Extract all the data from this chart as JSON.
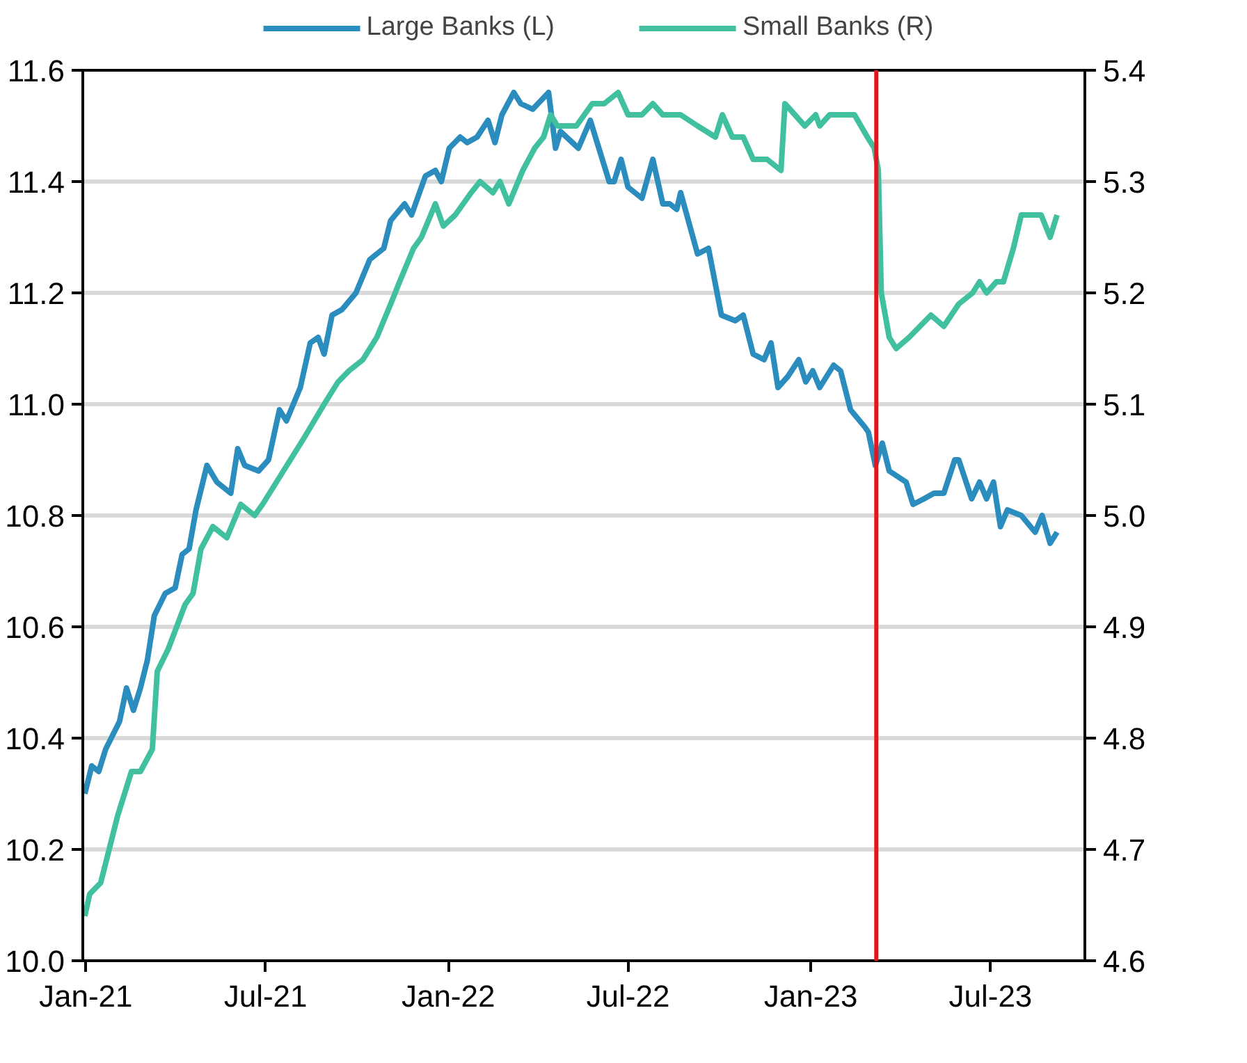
{
  "chart_data": {
    "type": "line",
    "legend": "top",
    "grid": "y",
    "line_style": "solid",
    "marker": "none",
    "xlim": [
      "2020-12-29",
      "2023-10-04"
    ],
    "xticks": [
      {
        "value": "2021-01-01",
        "label": "Jan-21"
      },
      {
        "value": "2021-07-01",
        "label": "Jul-21"
      },
      {
        "value": "2022-01-01",
        "label": "Jan-22"
      },
      {
        "value": "2022-07-01",
        "label": "Jul-22"
      },
      {
        "value": "2023-01-01",
        "label": "Jan-23"
      },
      {
        "value": "2023-07-01",
        "label": "Jul-23"
      }
    ],
    "ylim": [
      10.0,
      11.6
    ],
    "yticks": [
      {
        "value": 10.0,
        "label": "10.0"
      },
      {
        "value": 10.2,
        "label": "10.2"
      },
      {
        "value": 10.4,
        "label": "10.4"
      },
      {
        "value": 10.6,
        "label": "10.6"
      },
      {
        "value": 10.8,
        "label": "10.8"
      },
      {
        "value": 11.0,
        "label": "11.0"
      },
      {
        "value": 11.2,
        "label": "11.2"
      },
      {
        "value": 11.4,
        "label": "11.4"
      },
      {
        "value": 11.6,
        "label": "11.6"
      }
    ],
    "y2lim": [
      4.6,
      5.4
    ],
    "y2ticks": [
      4.6,
      4.7,
      4.8,
      4.9,
      {
        "value": 5.0,
        "label": "5.0"
      },
      5.1,
      5.2,
      5.3,
      5.4
    ],
    "ref_lines": [
      {
        "axis": "x",
        "value": "2023-03-08",
        "color": "#e8141c",
        "line_style": "solid"
      }
    ],
    "series": [
      {
        "name": "Large Banks (L)",
        "color": "#2b8cbe",
        "axis": "y",
        "x": [
          "2020-12-31",
          "2021-01-07",
          "2021-01-14",
          "2021-01-21",
          "2021-02-04",
          "2021-02-11",
          "2021-02-18",
          "2021-02-25",
          "2021-03-04",
          "2021-03-11",
          "2021-03-22",
          "2021-04-01",
          "2021-04-08",
          "2021-04-15",
          "2021-04-22",
          "2021-05-03",
          "2021-05-13",
          "2021-05-27",
          "2021-06-03",
          "2021-06-10",
          "2021-06-24",
          "2021-07-04",
          "2021-07-15",
          "2021-07-22",
          "2021-08-05",
          "2021-08-15",
          "2021-08-23",
          "2021-08-29",
          "2021-09-06",
          "2021-09-16",
          "2021-09-30",
          "2021-10-14",
          "2021-10-28",
          "2021-11-04",
          "2021-11-18",
          "2021-11-25",
          "2021-12-09",
          "2021-12-19",
          "2021-12-25",
          "2022-01-02",
          "2022-01-13",
          "2022-01-20",
          "2022-01-30",
          "2022-02-10",
          "2022-02-17",
          "2022-02-24",
          "2022-03-08",
          "2022-03-15",
          "2022-03-27",
          "2022-04-12",
          "2022-04-19",
          "2022-04-24",
          "2022-05-12",
          "2022-05-24",
          "2022-06-12",
          "2022-06-17",
          "2022-06-24",
          "2022-07-01",
          "2022-07-15",
          "2022-07-26",
          "2022-08-05",
          "2022-08-12",
          "2022-08-19",
          "2022-08-23",
          "2022-09-09",
          "2022-09-20",
          "2022-10-03",
          "2022-10-17",
          "2022-10-25",
          "2022-11-04",
          "2022-11-15",
          "2022-11-22",
          "2022-11-29",
          "2022-12-09",
          "2022-12-20",
          "2022-12-27",
          "2023-01-03",
          "2023-01-10",
          "2023-01-24",
          "2023-01-31",
          "2023-02-10",
          "2023-02-24",
          "2023-02-28",
          "2023-03-07",
          "2023-03-14",
          "2023-03-21",
          "2023-04-07",
          "2023-04-14",
          "2023-04-25",
          "2023-05-05",
          "2023-05-15",
          "2023-05-26",
          "2023-05-30",
          "2023-06-12",
          "2023-06-20",
          "2023-06-27",
          "2023-07-04",
          "2023-07-11",
          "2023-07-18",
          "2023-08-01",
          "2023-08-15",
          "2023-08-22",
          "2023-08-30",
          "2023-09-06"
        ],
        "values": [
          10.3,
          10.35,
          10.34,
          10.38,
          10.43,
          10.49,
          10.45,
          10.49,
          10.54,
          10.62,
          10.66,
          10.67,
          10.73,
          10.74,
          10.81,
          10.89,
          10.86,
          10.84,
          10.92,
          10.89,
          10.88,
          10.9,
          10.99,
          10.97,
          11.03,
          11.11,
          11.12,
          11.09,
          11.16,
          11.17,
          11.2,
          11.26,
          11.28,
          11.33,
          11.36,
          11.34,
          11.41,
          11.42,
          11.4,
          11.46,
          11.48,
          11.47,
          11.48,
          11.51,
          11.47,
          11.52,
          11.56,
          11.54,
          11.53,
          11.56,
          11.46,
          11.49,
          11.46,
          11.51,
          11.4,
          11.4,
          11.44,
          11.39,
          11.37,
          11.44,
          11.36,
          11.36,
          11.35,
          11.38,
          11.27,
          11.28,
          11.16,
          11.15,
          11.16,
          11.09,
          11.08,
          11.11,
          11.03,
          11.05,
          11.08,
          11.04,
          11.06,
          11.03,
          11.07,
          11.06,
          10.99,
          10.96,
          10.95,
          10.89,
          10.93,
          10.88,
          10.86,
          10.82,
          10.83,
          10.84,
          10.84,
          10.9,
          10.9,
          10.83,
          10.86,
          10.83,
          10.86,
          10.78,
          10.81,
          10.8,
          10.77,
          10.8,
          10.75,
          10.77
        ]
      },
      {
        "name": "Small Banks (R)",
        "color": "#41c0a0",
        "axis": "y2",
        "x": [
          "2020-12-31",
          "2021-01-05",
          "2021-01-16",
          "2021-02-02",
          "2021-02-16",
          "2021-02-25",
          "2021-03-09",
          "2021-03-14",
          "2021-03-25",
          "2021-04-11",
          "2021-04-19",
          "2021-04-27",
          "2021-05-09",
          "2021-05-23",
          "2021-06-06",
          "2021-06-20",
          "2021-06-28",
          "2021-07-12",
          "2021-07-26",
          "2021-08-09",
          "2021-08-29",
          "2021-09-12",
          "2021-09-23",
          "2021-10-07",
          "2021-10-21",
          "2021-11-04",
          "2021-11-13",
          "2021-11-27",
          "2021-12-05",
          "2021-12-19",
          "2021-12-27",
          "2022-01-08",
          "2022-01-24",
          "2022-02-02",
          "2022-02-15",
          "2022-02-22",
          "2022-03-03",
          "2022-03-17",
          "2022-03-29",
          "2022-04-07",
          "2022-04-14",
          "2022-04-21",
          "2022-05-10",
          "2022-05-26",
          "2022-06-07",
          "2022-06-21",
          "2022-07-01",
          "2022-07-15",
          "2022-07-26",
          "2022-08-05",
          "2022-08-23",
          "2022-09-09",
          "2022-09-27",
          "2022-10-04",
          "2022-10-14",
          "2022-10-25",
          "2022-11-04",
          "2022-11-18",
          "2022-12-02",
          "2022-12-06",
          "2022-12-16",
          "2022-12-26",
          "2023-01-06",
          "2023-01-10",
          "2023-01-20",
          "2023-01-31",
          "2023-02-14",
          "2023-02-27",
          "2023-03-06",
          "2023-03-10",
          "2023-03-13",
          "2023-03-21",
          "2023-03-28",
          "2023-04-10",
          "2023-04-21",
          "2023-05-02",
          "2023-05-15",
          "2023-05-30",
          "2023-06-13",
          "2023-06-20",
          "2023-06-27",
          "2023-07-07",
          "2023-07-14",
          "2023-07-24",
          "2023-08-01",
          "2023-08-08",
          "2023-08-21",
          "2023-08-30",
          "2023-09-06"
        ],
        "values": [
          4.64,
          4.66,
          4.67,
          4.73,
          4.77,
          4.77,
          4.79,
          4.86,
          4.88,
          4.92,
          4.93,
          4.97,
          4.99,
          4.98,
          5.01,
          5.0,
          5.01,
          5.03,
          5.05,
          5.07,
          5.1,
          5.12,
          5.13,
          5.14,
          5.16,
          5.19,
          5.21,
          5.24,
          5.25,
          5.28,
          5.26,
          5.27,
          5.29,
          5.3,
          5.29,
          5.3,
          5.28,
          5.31,
          5.33,
          5.34,
          5.36,
          5.35,
          5.35,
          5.37,
          5.37,
          5.38,
          5.36,
          5.36,
          5.37,
          5.36,
          5.36,
          5.35,
          5.34,
          5.36,
          5.34,
          5.34,
          5.32,
          5.32,
          5.31,
          5.37,
          5.36,
          5.35,
          5.36,
          5.35,
          5.36,
          5.36,
          5.36,
          5.34,
          5.33,
          5.31,
          5.2,
          5.16,
          5.15,
          5.16,
          5.17,
          5.18,
          5.17,
          5.19,
          5.2,
          5.21,
          5.2,
          5.21,
          5.21,
          5.24,
          5.27,
          5.27,
          5.27,
          5.25,
          5.27
        ]
      }
    ]
  }
}
